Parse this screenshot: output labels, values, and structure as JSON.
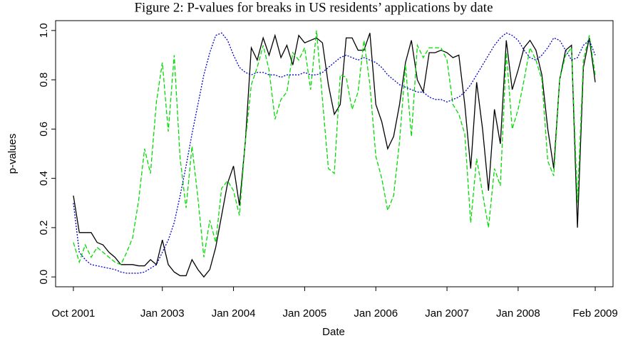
{
  "chart_data": {
    "type": "line",
    "title": "Figure 2: P-values for breaks in US residents’ applications by date",
    "xlabel": "Date",
    "ylabel": "p-values",
    "x": [
      "2001-10",
      "2001-11",
      "2001-12",
      "2002-01",
      "2002-02",
      "2002-03",
      "2002-04",
      "2002-05",
      "2002-06",
      "2002-07",
      "2002-08",
      "2002-09",
      "2002-10",
      "2002-11",
      "2002-12",
      "2003-01",
      "2003-02",
      "2003-03",
      "2003-04",
      "2003-05",
      "2003-06",
      "2003-07",
      "2003-08",
      "2003-09",
      "2003-10",
      "2003-11",
      "2003-12",
      "2004-01",
      "2004-02",
      "2004-03",
      "2004-04",
      "2004-05",
      "2004-06",
      "2004-07",
      "2004-08",
      "2004-09",
      "2004-10",
      "2004-11",
      "2004-12",
      "2005-01",
      "2005-02",
      "2005-03",
      "2005-04",
      "2005-05",
      "2005-06",
      "2005-07",
      "2005-08",
      "2005-09",
      "2005-10",
      "2005-11",
      "2005-12",
      "2006-01",
      "2006-02",
      "2006-03",
      "2006-04",
      "2006-05",
      "2006-06",
      "2006-07",
      "2006-08",
      "2006-09",
      "2006-10",
      "2006-11",
      "2006-12",
      "2007-01",
      "2007-02",
      "2007-03",
      "2007-04",
      "2007-05",
      "2007-06",
      "2007-07",
      "2007-08",
      "2007-09",
      "2007-10",
      "2007-11",
      "2007-12",
      "2008-01",
      "2008-02",
      "2008-03",
      "2008-04",
      "2008-05",
      "2008-06",
      "2008-07",
      "2008-08",
      "2008-09",
      "2008-10",
      "2008-11",
      "2008-12",
      "2009-01",
      "2009-02"
    ],
    "series": [
      {
        "color": "#000000",
        "linestyle": "solid",
        "values": [
          0.33,
          0.18,
          0.18,
          0.18,
          0.14,
          0.13,
          0.1,
          0.08,
          0.05,
          0.05,
          0.05,
          0.045,
          0.045,
          0.07,
          0.05,
          0.15,
          0.05,
          0.02,
          0.005,
          0.005,
          0.07,
          0.03,
          0.0,
          0.03,
          0.12,
          0.25,
          0.38,
          0.45,
          0.29,
          0.55,
          0.93,
          0.88,
          0.97,
          0.9,
          0.98,
          0.89,
          0.94,
          0.86,
          0.98,
          0.95,
          0.96,
          0.97,
          0.95,
          0.78,
          0.66,
          0.7,
          0.97,
          0.97,
          0.92,
          0.92,
          0.99,
          0.7,
          0.63,
          0.52,
          0.57,
          0.7,
          0.87,
          0.96,
          0.8,
          0.75,
          0.91,
          0.91,
          0.92,
          0.91,
          0.89,
          0.9,
          0.7,
          0.44,
          0.79,
          0.6,
          0.35,
          0.68,
          0.54,
          0.96,
          0.76,
          0.84,
          0.93,
          0.96,
          0.92,
          0.82,
          0.6,
          0.44,
          0.8,
          0.92,
          0.94,
          0.2,
          0.85,
          0.97,
          0.79
        ]
      },
      {
        "color": "#00dd00",
        "linestyle": "dashed",
        "values": [
          0.14,
          0.06,
          0.13,
          0.08,
          0.12,
          0.1,
          0.08,
          0.06,
          0.05,
          0.1,
          0.16,
          0.31,
          0.52,
          0.42,
          0.71,
          0.87,
          0.59,
          0.9,
          0.48,
          0.28,
          0.53,
          0.32,
          0.08,
          0.23,
          0.14,
          0.36,
          0.39,
          0.35,
          0.25,
          0.55,
          0.78,
          0.85,
          0.94,
          0.84,
          0.64,
          0.72,
          0.75,
          0.91,
          0.88,
          0.93,
          0.76,
          1.0,
          0.72,
          0.44,
          0.42,
          0.82,
          0.81,
          0.68,
          0.75,
          0.96,
          0.78,
          0.49,
          0.4,
          0.27,
          0.33,
          0.55,
          0.86,
          0.57,
          0.94,
          0.89,
          0.93,
          0.93,
          0.93,
          0.88,
          0.7,
          0.66,
          0.58,
          0.22,
          0.48,
          0.34,
          0.2,
          0.44,
          0.37,
          0.91,
          0.6,
          0.68,
          0.8,
          0.93,
          0.88,
          0.8,
          0.47,
          0.41,
          0.8,
          0.9,
          0.93,
          0.3,
          0.88,
          0.98,
          0.82
        ]
      },
      {
        "color": "#0000cc",
        "linestyle": "dotted",
        "values": [
          0.3,
          0.1,
          0.07,
          0.05,
          0.045,
          0.04,
          0.035,
          0.03,
          0.02,
          0.015,
          0.015,
          0.015,
          0.02,
          0.035,
          0.05,
          0.1,
          0.15,
          0.22,
          0.33,
          0.45,
          0.58,
          0.7,
          0.82,
          0.91,
          0.98,
          0.99,
          0.96,
          0.9,
          0.85,
          0.83,
          0.82,
          0.83,
          0.83,
          0.82,
          0.82,
          0.81,
          0.82,
          0.82,
          0.82,
          0.83,
          0.82,
          0.82,
          0.83,
          0.85,
          0.87,
          0.89,
          0.9,
          0.89,
          0.88,
          0.89,
          0.88,
          0.87,
          0.85,
          0.82,
          0.8,
          0.78,
          0.77,
          0.76,
          0.75,
          0.75,
          0.73,
          0.72,
          0.72,
          0.71,
          0.72,
          0.73,
          0.75,
          0.78,
          0.82,
          0.86,
          0.9,
          0.94,
          0.97,
          0.99,
          0.98,
          0.96,
          0.92,
          0.89,
          0.88,
          0.9,
          0.93,
          0.97,
          0.96,
          0.92,
          0.88,
          0.89,
          0.94,
          0.96,
          0.9
        ]
      }
    ],
    "xlim": [
      "2001-07",
      "2009-05"
    ],
    "xticks": [
      {
        "value": "2001-10",
        "label": "Oct 2001"
      },
      {
        "value": "2003-01",
        "label": "Jan 2003"
      },
      {
        "value": "2004-01",
        "label": "Jan 2004"
      },
      {
        "value": "2005-01",
        "label": "Jan 2005"
      },
      {
        "value": "2006-01",
        "label": "Jan 2006"
      },
      {
        "value": "2007-01",
        "label": "Jan 2007"
      },
      {
        "value": "2008-01",
        "label": "Jan 2008"
      },
      {
        "value": "2009-02",
        "label": "Feb 2009"
      }
    ],
    "ylim": [
      -0.04,
      1.04
    ],
    "yticks": [
      {
        "value": 0,
        "label": "0.0"
      },
      0.2,
      0.4,
      0.6,
      0.8,
      {
        "value": 1,
        "label": "1.0"
      }
    ]
  }
}
